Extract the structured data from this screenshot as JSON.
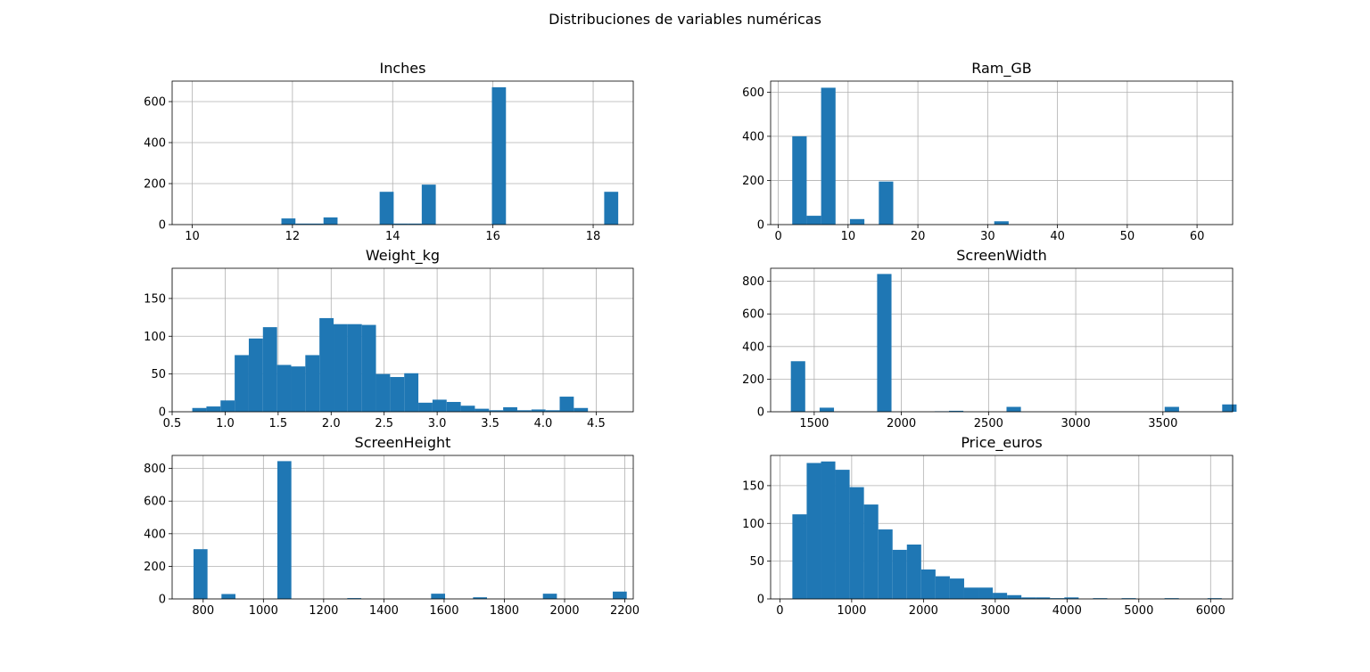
{
  "figure": {
    "title": "Distribuciones de variables numéricas",
    "bar_color": "#1f77b4",
    "grid_color": "#b0b0b0"
  },
  "chart_data": [
    {
      "type": "bar",
      "title": "Inches",
      "xlim": [
        9.6,
        18.8
      ],
      "ylim": [
        0,
        700
      ],
      "xticks": [
        10,
        12,
        14,
        16,
        18
      ],
      "yticks": [
        0,
        200,
        400,
        600
      ],
      "bin_start": 10.1,
      "bin_width": 0.28,
      "values": [
        0,
        0,
        0,
        0,
        0,
        0,
        30,
        5,
        5,
        35,
        0,
        0,
        0,
        160,
        5,
        5,
        195,
        0,
        0,
        0,
        0,
        670,
        0,
        0,
        0,
        0,
        0,
        0,
        0,
        160,
        0,
        0,
        0,
        0
      ]
    },
    {
      "type": "bar",
      "title": "Ram_GB",
      "xlim": [
        -1.1,
        65.1
      ],
      "ylim": [
        0,
        650
      ],
      "xticks": [
        0,
        10,
        20,
        30,
        40,
        50,
        60
      ],
      "yticks": [
        0,
        200,
        400,
        600
      ],
      "bin_start": 2,
      "bin_width": 2.067,
      "values": [
        400,
        40,
        620,
        0,
        25,
        0,
        195,
        0,
        0,
        0,
        0,
        0,
        0,
        0,
        15,
        0,
        0,
        0,
        0,
        0,
        0,
        0,
        0,
        0,
        0,
        0,
        0,
        0,
        0,
        0,
        0
      ]
    },
    {
      "type": "bar",
      "title": "Weight_kg",
      "xlim": [
        0.5,
        4.85
      ],
      "ylim": [
        0,
        190
      ],
      "xticks": [
        0.5,
        1.0,
        1.5,
        2.0,
        2.5,
        3.0,
        3.5,
        4.0,
        4.5
      ],
      "xtick_labels": [
        "0.5",
        "1.0",
        "1.5",
        "2.0",
        "2.5",
        "3.0",
        "3.5",
        "4.0",
        "4.5"
      ],
      "yticks": [
        0,
        50,
        100,
        150
      ],
      "bin_start": 0.69,
      "bin_width": 0.1333,
      "values": [
        5,
        7,
        15,
        75,
        97,
        112,
        62,
        60,
        75,
        124,
        116,
        116,
        115,
        50,
        46,
        51,
        12,
        16,
        13,
        8,
        4,
        2,
        6,
        2,
        3,
        2,
        20,
        5
      ]
    },
    {
      "type": "bar",
      "title": "ScreenWidth",
      "xlim": [
        1250,
        3900
      ],
      "ylim": [
        0,
        880
      ],
      "xticks": [
        1500,
        2000,
        2500,
        3000,
        3500
      ],
      "yticks": [
        0,
        200,
        400,
        600,
        800
      ],
      "bin_start": 1366,
      "bin_width": 82.47,
      "values": [
        310,
        0,
        25,
        0,
        0,
        0,
        845,
        0,
        0,
        0,
        3,
        6,
        0,
        0,
        0,
        30,
        0,
        0,
        0,
        0,
        0,
        0,
        0,
        0,
        0,
        0,
        30,
        0,
        0,
        0,
        45
      ]
    },
    {
      "type": "bar",
      "title": "ScreenHeight",
      "xlim": [
        697,
        2228
      ],
      "ylim": [
        0,
        880
      ],
      "xticks": [
        800,
        1000,
        1200,
        1400,
        1600,
        1800,
        2000,
        2200
      ],
      "yticks": [
        0,
        200,
        400,
        600,
        800
      ],
      "bin_start": 768,
      "bin_width": 46.4,
      "values": [
        305,
        0,
        30,
        0,
        0,
        0,
        845,
        0,
        0,
        0,
        0,
        5,
        0,
        0,
        0,
        0,
        0,
        32,
        0,
        0,
        10,
        0,
        0,
        0,
        0,
        32,
        0,
        0,
        0,
        0,
        45
      ]
    },
    {
      "type": "bar",
      "title": "Price_euros",
      "xlim": [
        -129,
        6307
      ],
      "ylim": [
        0,
        190
      ],
      "xticks": [
        0,
        1000,
        2000,
        3000,
        4000,
        5000,
        6000
      ],
      "yticks": [
        0,
        50,
        100,
        150
      ],
      "bin_start": 174,
      "bin_width": 199.4,
      "values": [
        112,
        180,
        182,
        171,
        148,
        125,
        92,
        65,
        72,
        39,
        30,
        27,
        15,
        15,
        8,
        5,
        2,
        2,
        1,
        2,
        0,
        1,
        0,
        1,
        0,
        0,
        1,
        0,
        0,
        1
      ]
    }
  ]
}
